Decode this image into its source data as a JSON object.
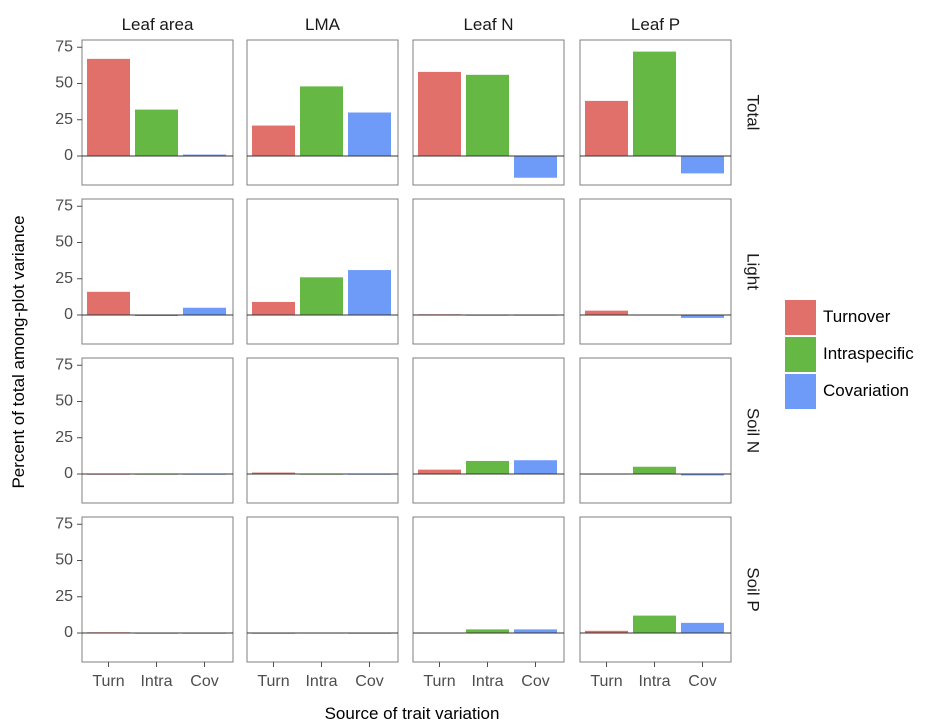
{
  "chart_data": {
    "type": "bar",
    "xlabel": "Source of trait variation",
    "ylabel": "Percent of total among-plot variance",
    "ylim": [
      -20,
      80
    ],
    "yticks": [
      0,
      25,
      50,
      75
    ],
    "categories": [
      "Turn",
      "Intra",
      "Cov"
    ],
    "column_facets": [
      "Leaf area",
      "LMA",
      "Leaf N",
      "Leaf P"
    ],
    "row_facets": [
      "Total",
      "Light",
      "Soil N",
      "Soil P"
    ],
    "legend": {
      "position": "right",
      "entries": [
        {
          "label": "Turnover",
          "color": "#e07069"
        },
        {
          "label": "Intraspecific",
          "color": "#65b843"
        },
        {
          "label": "Covariation",
          "color": "#6e9bf8"
        }
      ]
    },
    "grid": false,
    "panels": [
      {
        "row": "Total",
        "col": "Leaf area",
        "values": [
          67,
          32,
          1
        ]
      },
      {
        "row": "Total",
        "col": "LMA",
        "values": [
          21,
          48,
          30
        ]
      },
      {
        "row": "Total",
        "col": "Leaf N",
        "values": [
          58,
          56,
          -15
        ]
      },
      {
        "row": "Total",
        "col": "Leaf P",
        "values": [
          38,
          72,
          -12
        ]
      },
      {
        "row": "Light",
        "col": "Leaf area",
        "values": [
          16,
          0,
          5
        ]
      },
      {
        "row": "Light",
        "col": "LMA",
        "values": [
          9,
          26,
          31
        ]
      },
      {
        "row": "Light",
        "col": "Leaf N",
        "values": [
          0.5,
          0.2,
          0.2
        ]
      },
      {
        "row": "Light",
        "col": "Leaf P",
        "values": [
          3,
          0.3,
          -2
        ]
      },
      {
        "row": "Soil N",
        "col": "Leaf area",
        "values": [
          0.2,
          0.2,
          0.2
        ]
      },
      {
        "row": "Soil N",
        "col": "LMA",
        "values": [
          1,
          0.2,
          0.2
        ]
      },
      {
        "row": "Soil N",
        "col": "Leaf N",
        "values": [
          3,
          9,
          9.5
        ]
      },
      {
        "row": "Soil N",
        "col": "Leaf P",
        "values": [
          0.3,
          5,
          -1
        ]
      },
      {
        "row": "Soil P",
        "col": "Leaf area",
        "values": [
          0.5,
          0.2,
          0.2
        ]
      },
      {
        "row": "Soil P",
        "col": "LMA",
        "values": [
          0.2,
          0.3,
          0.2
        ]
      },
      {
        "row": "Soil P",
        "col": "Leaf N",
        "values": [
          0.3,
          2.5,
          2.5
        ]
      },
      {
        "row": "Soil P",
        "col": "Leaf P",
        "values": [
          1.5,
          12,
          7
        ]
      }
    ]
  }
}
